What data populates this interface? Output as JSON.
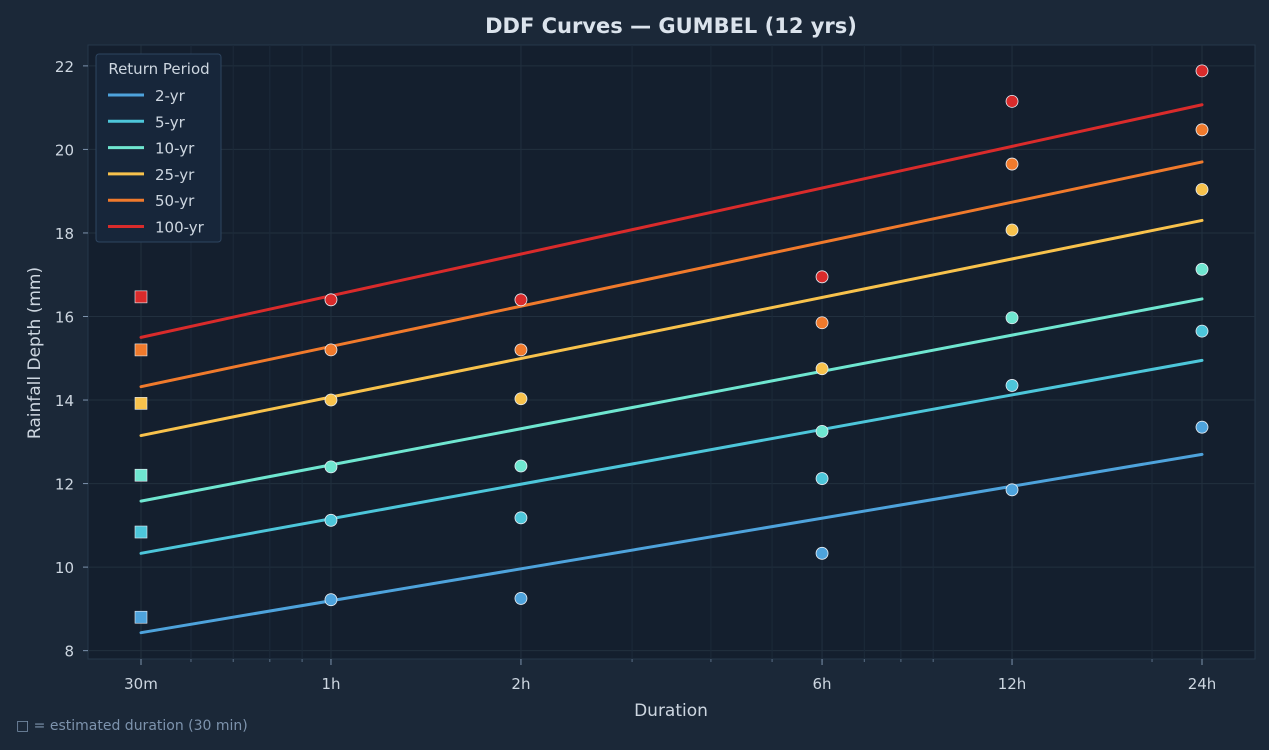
{
  "chart_data": {
    "type": "line",
    "title": "DDF Curves — GUMBEL  (12 yrs)",
    "xlabel": "Duration",
    "ylabel": "Rainfall Depth (mm)",
    "x_scale": "log",
    "x_hours": [
      0.5,
      1,
      2,
      6,
      12,
      24
    ],
    "x_tick_labels": [
      "30m",
      "1h",
      "2h",
      "6h",
      "12h",
      "24h"
    ],
    "y_ticks": [
      8,
      10,
      12,
      14,
      16,
      18,
      20,
      22
    ],
    "ylim": [
      7.8,
      22.5
    ],
    "grid": true,
    "legend": {
      "title": "Return Period",
      "position": "top-left"
    },
    "series": [
      {
        "name": "2-yr",
        "color": "#4ea3dc",
        "fit": [
          [
            0.5,
            8.43
          ],
          [
            24,
            12.7
          ]
        ],
        "points": [
          8.8,
          9.22,
          9.25,
          10.33,
          11.85,
          13.35
        ]
      },
      {
        "name": "5-yr",
        "color": "#4dc6da",
        "fit": [
          [
            0.5,
            10.33
          ],
          [
            24,
            14.95
          ]
        ],
        "points": [
          10.84,
          11.12,
          11.18,
          12.12,
          14.35,
          15.65
        ]
      },
      {
        "name": "10-yr",
        "color": "#6fe6d0",
        "fit": [
          [
            0.5,
            11.58
          ],
          [
            24,
            16.42
          ]
        ],
        "points": [
          12.2,
          12.4,
          12.42,
          13.25,
          15.97,
          17.13
        ]
      },
      {
        "name": "25-yr",
        "color": "#f8c24c",
        "fit": [
          [
            0.5,
            13.15
          ],
          [
            24,
            18.3
          ]
        ],
        "points": [
          13.92,
          14.0,
          14.03,
          14.75,
          18.07,
          19.04
        ]
      },
      {
        "name": "50-yr",
        "color": "#f07a2c",
        "fit": [
          [
            0.5,
            14.32
          ],
          [
            24,
            19.7
          ]
        ],
        "points": [
          15.2,
          15.2,
          15.2,
          15.85,
          19.65,
          20.47
        ]
      },
      {
        "name": "100-yr",
        "color": "#d92b2b",
        "fit": [
          [
            0.5,
            15.5
          ],
          [
            24,
            21.07
          ]
        ],
        "points": [
          16.47,
          16.4,
          16.4,
          16.95,
          21.15,
          21.88
        ]
      }
    ],
    "estimated_marker": {
      "x_hours": 0.5,
      "shape": "square"
    }
  },
  "footnote": "□ = estimated duration (30 min)",
  "colors": {
    "background": "#1b2838",
    "plot_background": "#141f2e",
    "grid": "#22303f",
    "text": "#cdd6e0",
    "title_text": "#dbe3ec",
    "note_text": "#7d93ad"
  }
}
